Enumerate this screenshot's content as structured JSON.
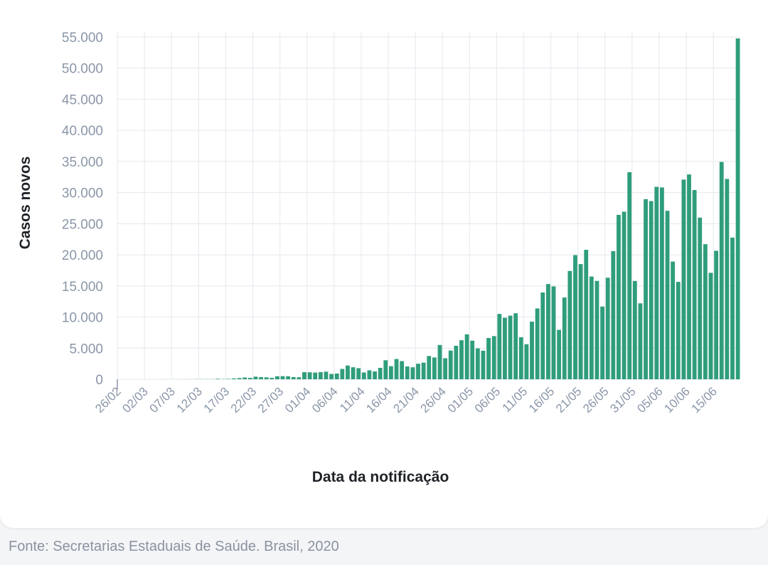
{
  "chart_data": {
    "type": "bar",
    "title": "",
    "xlabel": "Data da notificação",
    "ylabel": "Casos novos",
    "ylim": [
      0,
      55000
    ],
    "yticks": [
      "0",
      "5.000",
      "10.000",
      "15.000",
      "20.000",
      "25.000",
      "30.000",
      "35.000",
      "40.000",
      "45.000",
      "50.000",
      "55.000"
    ],
    "xticks": [
      "26/02",
      "02/03",
      "07/03",
      "12/03",
      "17/03",
      "22/03",
      "27/03",
      "01/04",
      "06/04",
      "11/04",
      "16/04",
      "21/04",
      "26/04",
      "01/05",
      "06/05",
      "11/05",
      "16/05",
      "21/05",
      "26/05",
      "31/05",
      "05/06",
      "10/06",
      "15/06"
    ],
    "x_start": "26/02/2020",
    "x_end": "19/06/2020",
    "grid": true,
    "bar_color": "#2f9d7b",
    "values": [
      1,
      0,
      0,
      1,
      0,
      0,
      0,
      0,
      6,
      5,
      6,
      6,
      5,
      9,
      18,
      25,
      21,
      23,
      79,
      34,
      57,
      137,
      193,
      283,
      224,
      418,
      345,
      310,
      232,
      482,
      502,
      487,
      352,
      323,
      1138,
      1119,
      1074,
      1146,
      1222,
      852,
      926,
      1661,
      2210,
      1930,
      1781,
      1089,
      1442,
      1261,
      1832,
      3058,
      2105,
      3257,
      2917,
      2055,
      1927,
      2498,
      2678,
      3735,
      3503,
      5514,
      3379,
      4613,
      5385,
      6276,
      7218,
      6209,
      4970,
      4588,
      6633,
      6935,
      10503,
      9888,
      10222,
      10611,
      6760,
      5632,
      9258,
      11385,
      13944,
      15305,
      14919,
      7938,
      13140,
      17408,
      19951,
      18508,
      20803,
      16508,
      15813,
      11687,
      16324,
      20599,
      26417,
      26928,
      33274,
      15800,
      12200,
      28936,
      28633,
      30925,
      30830,
      27075,
      18912,
      15654,
      32091,
      32913,
      30412,
      25982,
      21704,
      17110,
      20647,
      34918,
      32188,
      22765,
      54771
    ]
  },
  "footer": {
    "source": "Fonte: Secretarias Estaduais de Saúde. Brasil, 2020"
  }
}
